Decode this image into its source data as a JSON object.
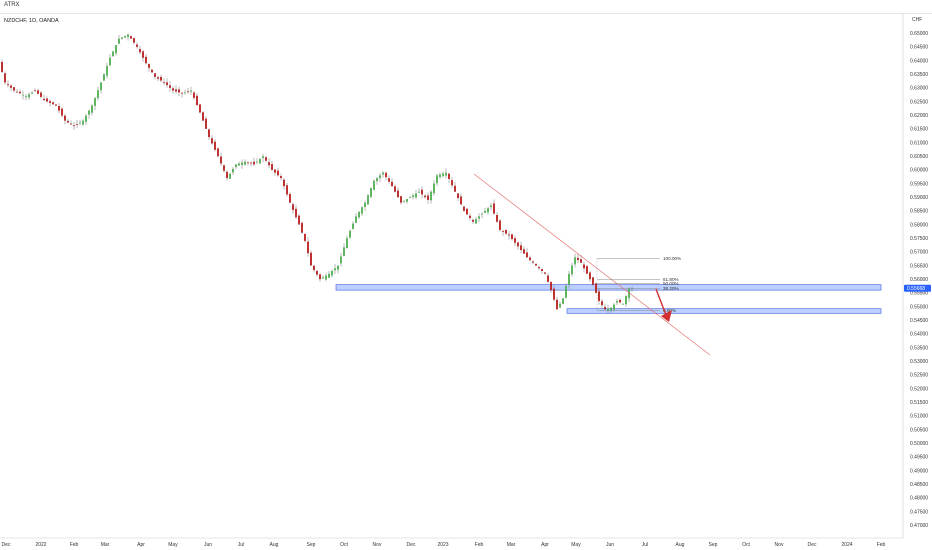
{
  "window": {
    "title": "ATRX"
  },
  "symbol_label": "NZDCHF, 1D, OANDA",
  "currency_label": "CHF",
  "price_tag": {
    "value": "0.55668",
    "color": "#2962ff"
  },
  "colors": {
    "up": "#26a69a",
    "up_fill": "#4caf50",
    "down": "#b71c1c",
    "trendline": "#e57373",
    "zone_fill": "#bbd0ff",
    "zone_stroke": "#3b5bdb",
    "arrow": "#d32f2f"
  },
  "chart_data": {
    "type": "candlestick",
    "title": "",
    "ylabel": "CHF",
    "ylim": [
      0.4675,
      0.653
    ],
    "y_ticks": [
      "0.65000",
      "0.64500",
      "0.64000",
      "0.63500",
      "0.63000",
      "0.62500",
      "0.62000",
      "0.61500",
      "0.61000",
      "0.60500",
      "0.60000",
      "0.59500",
      "0.59000",
      "0.58500",
      "0.58000",
      "0.57500",
      "0.57000",
      "0.56500",
      "0.56000",
      "0.55500",
      "0.55000",
      "0.54500",
      "0.54000",
      "0.53500",
      "0.53000",
      "0.52500",
      "0.52000",
      "0.51500",
      "0.51000",
      "0.50500",
      "0.50000",
      "0.49500",
      "0.49000",
      "0.48500",
      "0.48000",
      "0.47500",
      "0.47000"
    ],
    "x_ticks": [
      "Dec",
      "2022",
      "Feb",
      "Mar",
      "Apr",
      "May",
      "Jun",
      "Jul",
      "Aug",
      "Sep",
      "Oct",
      "Nov",
      "Dec",
      "2023",
      "Feb",
      "Mar",
      "Apr",
      "May",
      "Jun",
      "Jul",
      "Aug",
      "Sep",
      "Oct",
      "Nov",
      "Dec",
      "2024",
      "Feb"
    ],
    "price_path": [
      [
        0,
        0.6395
      ],
      [
        2,
        0.632
      ],
      [
        5,
        0.629
      ],
      [
        9,
        0.627
      ],
      [
        12,
        0.629
      ],
      [
        15,
        0.6255
      ],
      [
        19,
        0.6235
      ],
      [
        22,
        0.618
      ],
      [
        25,
        0.616
      ],
      [
        28,
        0.618
      ],
      [
        31,
        0.6235
      ],
      [
        34,
        0.632
      ],
      [
        37,
        0.641
      ],
      [
        40,
        0.648
      ],
      [
        43,
        0.6495
      ],
      [
        46,
        0.645
      ],
      [
        49,
        0.639
      ],
      [
        52,
        0.634
      ],
      [
        55,
        0.632
      ],
      [
        58,
        0.629
      ],
      [
        61,
        0.628
      ],
      [
        64,
        0.629
      ],
      [
        67,
        0.621
      ],
      [
        70,
        0.612
      ],
      [
        73,
        0.605
      ],
      [
        76,
        0.597
      ],
      [
        79,
        0.602
      ],
      [
        82,
        0.603
      ],
      [
        85,
        0.602
      ],
      [
        88,
        0.605
      ],
      [
        91,
        0.6
      ],
      [
        94,
        0.597
      ],
      [
        97,
        0.588
      ],
      [
        100,
        0.58
      ],
      [
        102,
        0.574
      ],
      [
        104,
        0.565
      ],
      [
        107,
        0.56
      ],
      [
        110,
        0.562
      ],
      [
        113,
        0.565
      ],
      [
        116,
        0.575
      ],
      [
        119,
        0.583
      ],
      [
        122,
        0.588
      ],
      [
        125,
        0.596
      ],
      [
        128,
        0.599
      ],
      [
        131,
        0.594
      ],
      [
        134,
        0.588
      ],
      [
        137,
        0.59
      ],
      [
        140,
        0.592
      ],
      [
        143,
        0.589
      ],
      [
        146,
        0.598
      ],
      [
        149,
        0.599
      ],
      [
        152,
        0.592
      ],
      [
        155,
        0.585
      ],
      [
        158,
        0.581
      ],
      [
        161,
        0.584
      ],
      [
        164,
        0.587
      ],
      [
        167,
        0.578
      ],
      [
        170,
        0.576
      ],
      [
        173,
        0.572
      ],
      [
        176,
        0.568
      ],
      [
        179,
        0.565
      ],
      [
        182,
        0.562
      ],
      [
        184,
        0.556
      ],
      [
        186,
        0.549
      ],
      [
        188,
        0.553
      ],
      [
        190,
        0.562
      ],
      [
        192,
        0.568
      ],
      [
        194,
        0.566
      ],
      [
        196,
        0.562
      ],
      [
        198,
        0.558
      ],
      [
        200,
        0.552
      ],
      [
        202,
        0.549
      ],
      [
        204,
        0.5495
      ],
      [
        206,
        0.552
      ],
      [
        208,
        0.551
      ],
      [
        210,
        0.5567
      ]
    ]
  },
  "annotations": {
    "fib_levels": [
      {
        "label": "100.00%",
        "value": 0.5675
      },
      {
        "label": "61.80%",
        "value": 0.5598
      },
      {
        "label": "50.00%",
        "value": 0.5584
      },
      {
        "label": "38.20%",
        "value": 0.5565
      },
      {
        "label": "0.00%",
        "value": 0.5485
      }
    ],
    "zones": [
      {
        "name": "upper-support-zone",
        "low": 0.556,
        "high": 0.558
      },
      {
        "name": "lower-support-zone",
        "low": 0.5475,
        "high": 0.5492
      }
    ]
  }
}
